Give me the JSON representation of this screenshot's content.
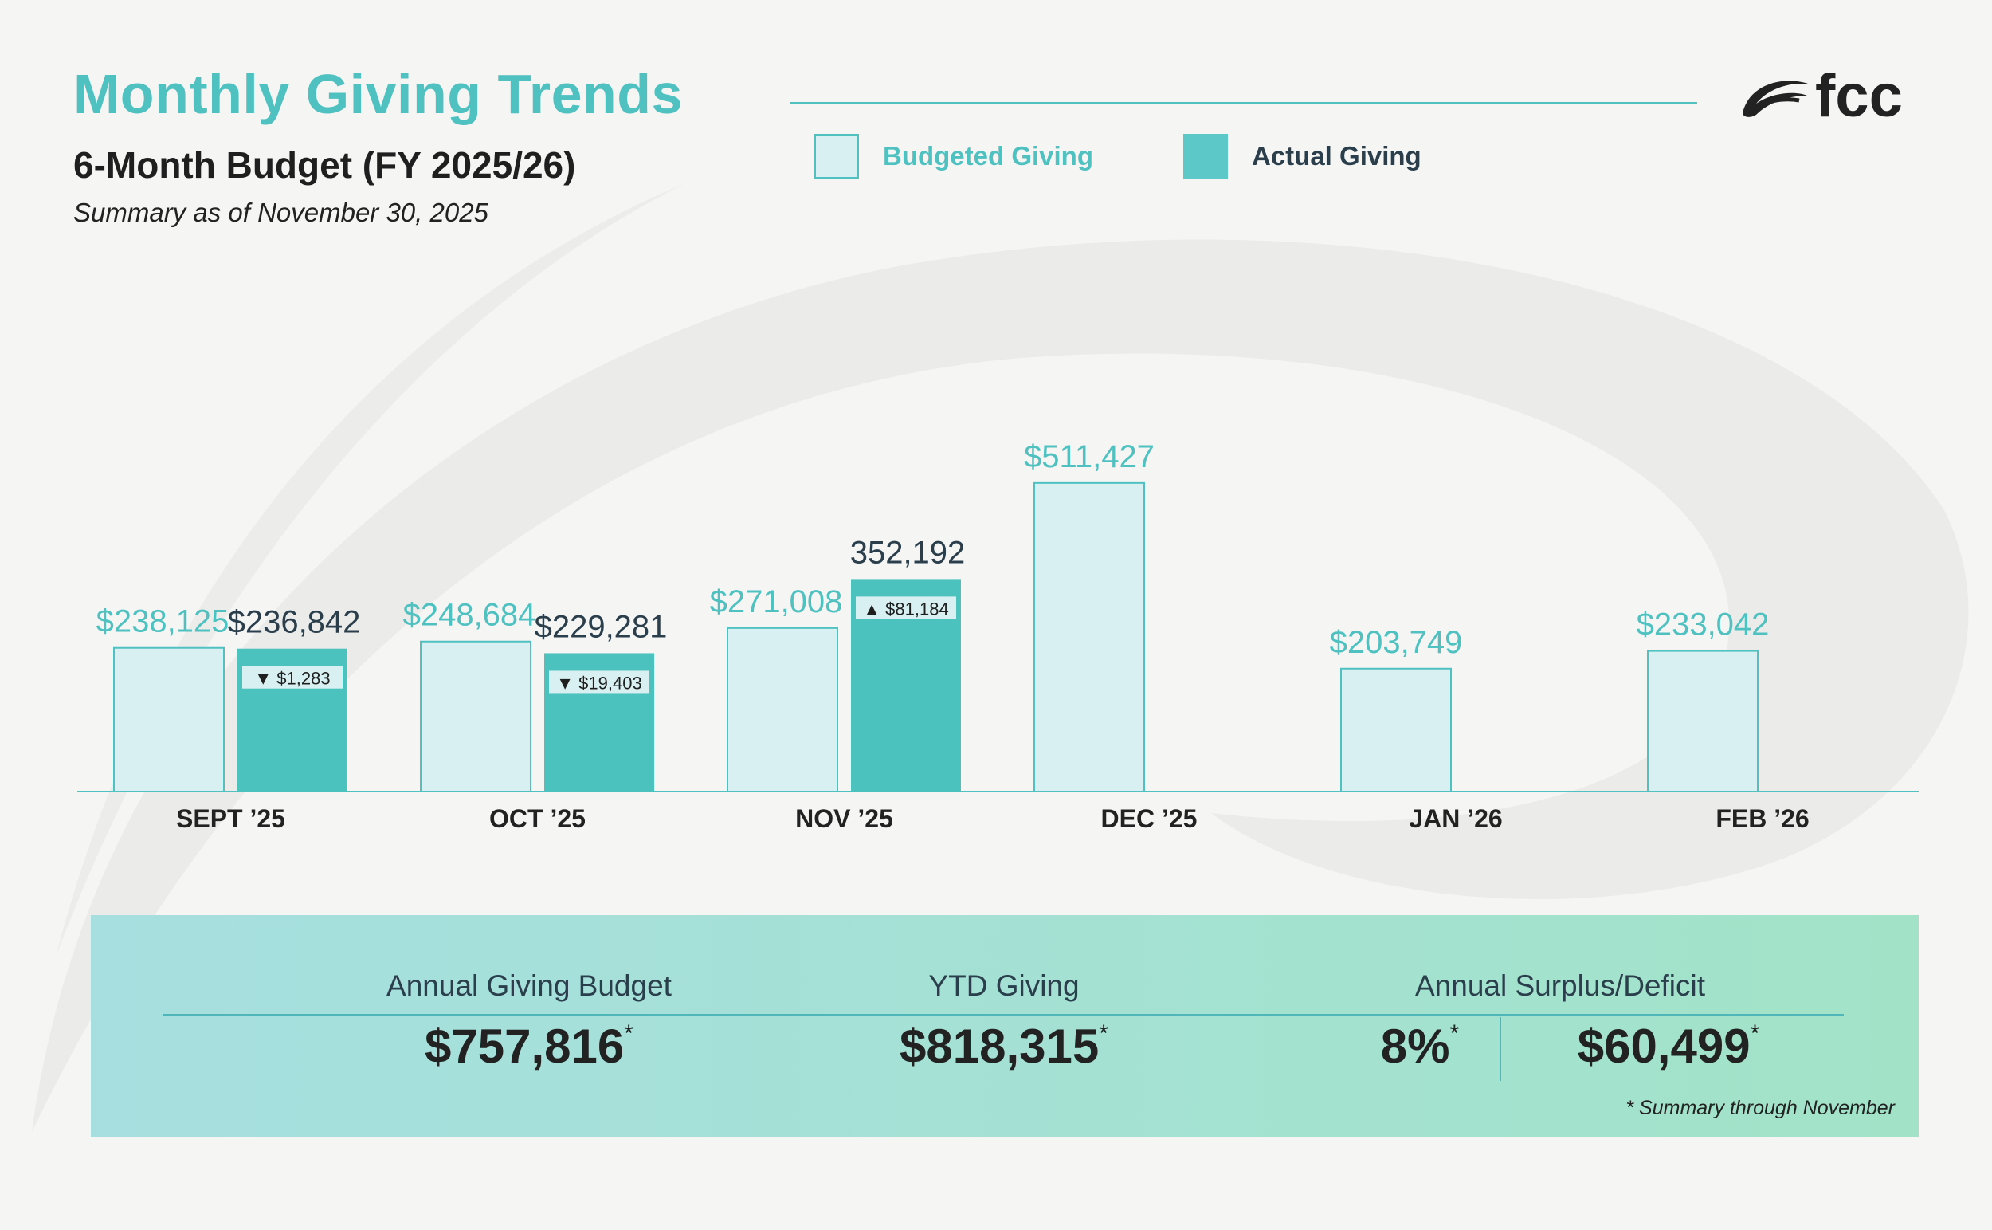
{
  "header": {
    "title": "Monthly Giving Trends",
    "subtitle": "6-Month Budget (FY 2025/26)",
    "as_of": "Summary as of November 30, 2025"
  },
  "logo": {
    "text": "fcc",
    "icon": "swoosh-logo-icon"
  },
  "legend": {
    "budgeted": "Budgeted Giving",
    "actual": "Actual Giving"
  },
  "colors": {
    "accent": "#4fc1c0",
    "budget_fill": "#d8f0f1",
    "actual_fill": "#4cc2bf",
    "dark_text": "#2a3e4c",
    "variance_bg": "#d8f0f1"
  },
  "chart_data": {
    "type": "bar",
    "title": "Monthly Giving Trends",
    "categories": [
      "SEPT ’25",
      "OCT ’25",
      "NOV ’25",
      "DEC ’25",
      "JAN ’26",
      "FEB ’26"
    ],
    "series": [
      {
        "name": "Budgeted Giving",
        "values": [
          238125,
          248684,
          271008,
          511427,
          203749,
          233042
        ],
        "labels": [
          "$238,125",
          "$248,684",
          "$271,008",
          "$511,427",
          "$203,749",
          "$233,042"
        ]
      },
      {
        "name": "Actual Giving",
        "values": [
          236842,
          229281,
          352192,
          null,
          null,
          null
        ],
        "labels": [
          "$236,842",
          "$229,281",
          "352,192",
          null,
          null,
          null
        ]
      }
    ],
    "variance": [
      {
        "direction": "down",
        "glyph": "▼",
        "text": "$1,283"
      },
      {
        "direction": "down",
        "glyph": "▼",
        "text": "$19,403"
      },
      {
        "direction": "up",
        "glyph": "▲",
        "text": "$81,184"
      },
      null,
      null,
      null
    ],
    "ylim": [
      0,
      540000
    ],
    "xlabel": "",
    "ylabel": "",
    "grid": false
  },
  "summary": {
    "budget_label": "Annual Giving Budget",
    "budget_value": "$757,816",
    "ytd_label": "YTD Giving",
    "ytd_value": "$818,315",
    "surplus_label": "Annual Surplus/Deficit",
    "surplus_percent": "8%",
    "surplus_value": "$60,499",
    "asterisk": "*",
    "footnote": "*  Summary through November"
  }
}
